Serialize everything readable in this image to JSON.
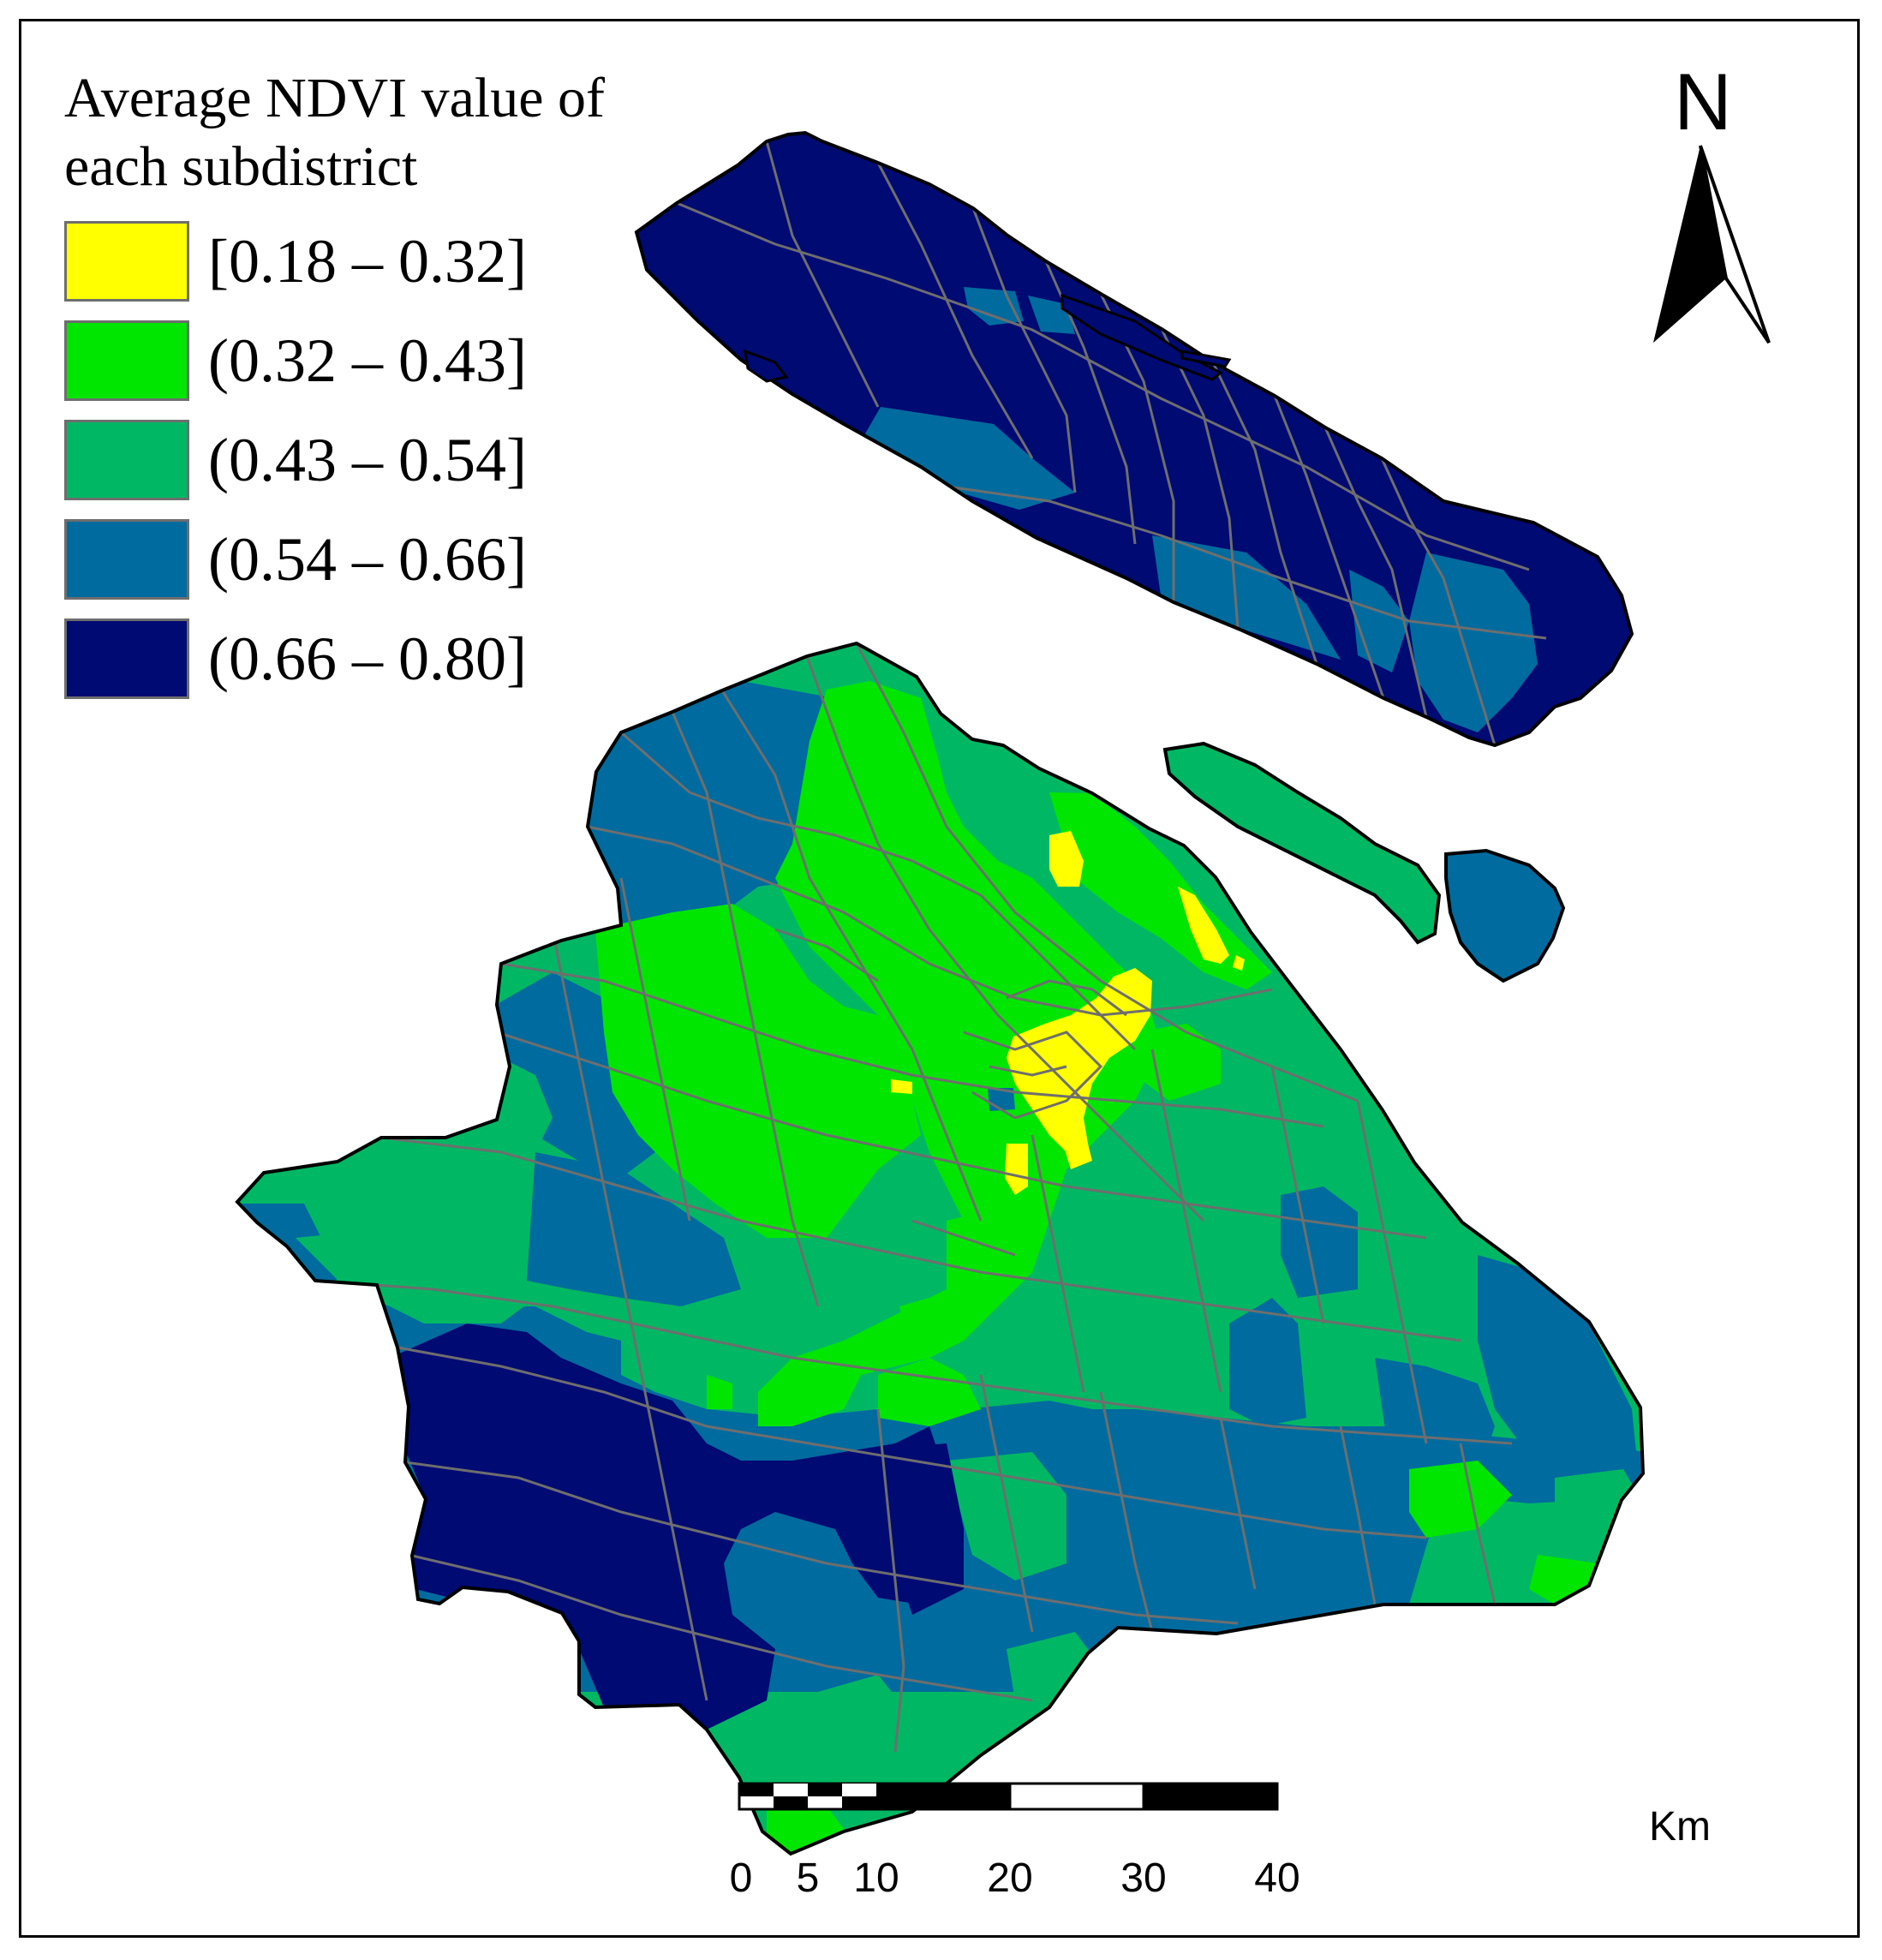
{
  "legend": {
    "title_line1": "Average NDVI value of",
    "title_line2": "each subdistrict",
    "classes": [
      {
        "label": "[0.18 – 0.32]",
        "color": "#ffff00"
      },
      {
        "label": "(0.32 – 0.43]",
        "color": "#00e600"
      },
      {
        "label": "(0.43 – 0.54]",
        "color": "#00b863"
      },
      {
        "label": "(0.54 – 0.66]",
        "color": "#006b9e"
      },
      {
        "label": "(0.66 – 0.80]",
        "color": "#000a73"
      }
    ]
  },
  "north_arrow": {
    "label": "N",
    "icon": "north-arrow-icon"
  },
  "scale_bar": {
    "unit": "Km",
    "ticks": [
      "0",
      "5",
      "10",
      "20",
      "30",
      "40"
    ]
  },
  "colors": {
    "boundary": "#6e6e6e",
    "outline": "#000000"
  }
}
